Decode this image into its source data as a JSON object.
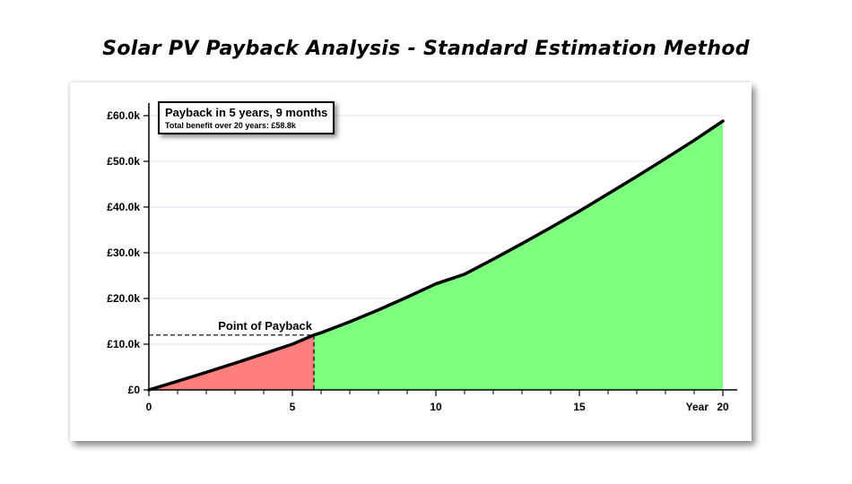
{
  "title": "Solar PV Payback Analysis - Standard Estimation Method",
  "infobox": {
    "headline": "Payback in 5 years, 9 months",
    "subline": "Total benefit over 20 years: £58.8k"
  },
  "chart_data": {
    "type": "area",
    "title": "Solar PV Payback Analysis - Standard Estimation Method",
    "xlabel": "Year",
    "ylabel": "",
    "xlim": [
      0,
      20
    ],
    "ylim": [
      0,
      60000
    ],
    "x_ticks": [
      {
        "value": 0,
        "label": "0"
      },
      {
        "value": 5,
        "label": "5"
      },
      {
        "value": 10,
        "label": "10"
      },
      {
        "value": 15,
        "label": "15"
      },
      {
        "value": 20,
        "label": "20"
      }
    ],
    "x_minor_ticks": [
      1,
      2,
      3,
      4,
      6,
      7,
      8,
      9,
      11,
      12,
      13,
      14,
      16,
      17,
      18,
      19
    ],
    "x_axis_title_label": "Year",
    "y_ticks": [
      {
        "value": 0,
        "label": "£0"
      },
      {
        "value": 10000,
        "label": "£10.0k"
      },
      {
        "value": 20000,
        "label": "£20.0k"
      },
      {
        "value": 30000,
        "label": "£30.0k"
      },
      {
        "value": 40000,
        "label": "£40.0k"
      },
      {
        "value": 50000,
        "label": "£50.0k"
      },
      {
        "value": 60000,
        "label": "£60.0k"
      }
    ],
    "grid": true,
    "series": [
      {
        "x": [
          0,
          1,
          2,
          3,
          4,
          5,
          5.75,
          6,
          7,
          8,
          9,
          10,
          11,
          12,
          13,
          14,
          15,
          16,
          17,
          18,
          19,
          20
        ],
        "y": [
          0,
          1900,
          3850,
          5850,
          7900,
          10000,
          12000,
          12500,
          14900,
          17500,
          20300,
          23200,
          25300,
          28600,
          32000,
          35500,
          39100,
          42900,
          46700,
          50600,
          54600,
          58800
        ]
      }
    ],
    "payback_x": 5.75,
    "payback_y": 12000,
    "payback_label": "Point of Payback",
    "colors": {
      "before_payback": "#ff7f7f",
      "after_payback": "#7fff7f",
      "line": "#000000",
      "grid": "#e3e3f2"
    }
  }
}
